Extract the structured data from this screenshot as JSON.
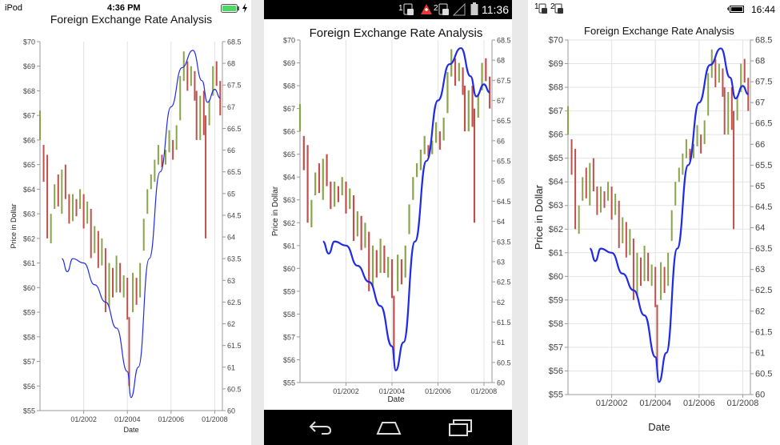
{
  "screens": [
    {
      "id": "ios",
      "status": {
        "carrier": "iPod",
        "time": "4:36 PM"
      },
      "title": "Foreign Exchange Rate Analysis",
      "ylabel": "Price in Dollar",
      "xlabel": "Date"
    },
    {
      "id": "android",
      "status": {
        "notif_counts": [
          "1",
          "2"
        ],
        "time": "11:36"
      },
      "title": "Foreign Exchange Rate Analysis",
      "ylabel": "Price in Dollar",
      "xlabel": "Date"
    },
    {
      "id": "windows",
      "status": {
        "notif_counts": [
          "1",
          "2"
        ],
        "time": "16:44"
      },
      "title": "Foreign Exchange Rate Analysis",
      "ylabel": "Price in Dollar",
      "xlabel": "Date"
    }
  ],
  "colors": {
    "bull": "#8aa549",
    "bear": "#c0504d",
    "line": "#1f2be6",
    "grid": "#e6e6e6",
    "battery": "#4cd964"
  },
  "icons": [
    "battery-icon",
    "charging-bolt-icon",
    "notification-icon",
    "warning-icon",
    "signal-icon",
    "back-icon",
    "home-icon",
    "recents-icon"
  ],
  "chart_data": {
    "type": "candlestick",
    "title": "Foreign Exchange Rate Analysis",
    "xlabel": "Date",
    "ylabel": "Price in Dollar",
    "x_ticks": [
      "01/2002",
      "01/2004",
      "01/2006",
      "01/2008"
    ],
    "y_ticks": [
      "$55",
      "$56",
      "$57",
      "$58",
      "$59",
      "$60",
      "$61",
      "$62",
      "$63",
      "$64",
      "$65",
      "$66",
      "$67",
      "$68",
      "$69",
      "$70"
    ],
    "y2_ticks": [
      "60",
      "60.5",
      "61",
      "61.5",
      "62",
      "62.5",
      "63",
      "63.5",
      "64",
      "64.5",
      "65",
      "65.5",
      "66",
      "66.5",
      "67",
      "67.5",
      "68",
      "68.5"
    ],
    "ylim": [
      55,
      70
    ],
    "y2lim": [
      60,
      68.5
    ],
    "candles": [
      {
        "date": "2000-01",
        "open": 66.0,
        "close": 67.2
      },
      {
        "date": "2000-03",
        "open": 65.8,
        "close": 64.3
      },
      {
        "date": "2000-05",
        "open": 65.4,
        "close": 62.0
      },
      {
        "date": "2000-07",
        "open": 61.8,
        "close": 63.0
      },
      {
        "date": "2000-09",
        "open": 63.2,
        "close": 64.2
      },
      {
        "date": "2000-11",
        "open": 64.6,
        "close": 63.3
      },
      {
        "date": "2001-01",
        "open": 63.0,
        "close": 64.8
      },
      {
        "date": "2001-03",
        "open": 65.0,
        "close": 63.6
      },
      {
        "date": "2001-05",
        "open": 63.8,
        "close": 62.6
      },
      {
        "date": "2001-07",
        "open": 62.7,
        "close": 63.8
      },
      {
        "date": "2001-09",
        "open": 63.6,
        "close": 62.9
      },
      {
        "date": "2001-11",
        "open": 63.2,
        "close": 64.0
      },
      {
        "date": "2002-01",
        "open": 63.8,
        "close": 62.4
      },
      {
        "date": "2002-03",
        "open": 62.6,
        "close": 63.5
      },
      {
        "date": "2002-05",
        "open": 63.2,
        "close": 61.2
      },
      {
        "date": "2002-07",
        "open": 61.4,
        "close": 62.5
      },
      {
        "date": "2002-09",
        "open": 62.3,
        "close": 60.8
      },
      {
        "date": "2002-11",
        "open": 60.9,
        "close": 62.0
      },
      {
        "date": "2003-01",
        "open": 61.6,
        "close": 59.0
      },
      {
        "date": "2003-03",
        "open": 59.2,
        "close": 61.0
      },
      {
        "date": "2003-05",
        "open": 60.8,
        "close": 59.6
      },
      {
        "date": "2003-07",
        "open": 59.8,
        "close": 61.3
      },
      {
        "date": "2003-09",
        "open": 61.0,
        "close": 59.8
      },
      {
        "date": "2003-11",
        "open": 59.6,
        "close": 60.5
      },
      {
        "date": "2004-01",
        "open": 60.4,
        "close": 58.7
      },
      {
        "date": "2004-02",
        "open": 58.8,
        "close": 56.0
      },
      {
        "date": "2004-04",
        "open": 59.0,
        "close": 60.6
      },
      {
        "date": "2004-06",
        "open": 60.4,
        "close": 59.3
      },
      {
        "date": "2004-08",
        "open": 59.6,
        "close": 61.0
      },
      {
        "date": "2004-10",
        "open": 61.5,
        "close": 62.8
      },
      {
        "date": "2004-12",
        "open": 63.0,
        "close": 64.0
      },
      {
        "date": "2005-02",
        "open": 64.0,
        "close": 64.6
      },
      {
        "date": "2005-04",
        "open": 64.3,
        "close": 65.2
      },
      {
        "date": "2005-06",
        "open": 65.0,
        "close": 65.8
      },
      {
        "date": "2005-08",
        "open": 65.4,
        "close": 64.9
      },
      {
        "date": "2005-10",
        "open": 65.0,
        "close": 65.6
      },
      {
        "date": "2005-12",
        "open": 65.5,
        "close": 66.4
      },
      {
        "date": "2006-02",
        "open": 66.0,
        "close": 65.2
      },
      {
        "date": "2006-04",
        "open": 65.6,
        "close": 66.6
      },
      {
        "date": "2006-06",
        "open": 66.8,
        "close": 68.6
      },
      {
        "date": "2006-08",
        "open": 68.4,
        "close": 69.6
      },
      {
        "date": "2006-10",
        "open": 69.2,
        "close": 68.0
      },
      {
        "date": "2006-12",
        "open": 68.2,
        "close": 69.0
      },
      {
        "date": "2007-02",
        "open": 68.8,
        "close": 67.6
      },
      {
        "date": "2007-03",
        "open": 68.0,
        "close": 66.0
      },
      {
        "date": "2007-05",
        "open": 66.0,
        "close": 67.8
      },
      {
        "date": "2007-07",
        "open": 68.0,
        "close": 66.2
      },
      {
        "date": "2007-08",
        "open": 67.0,
        "close": 62.0
      },
      {
        "date": "2007-10",
        "open": 66.6,
        "close": 67.6
      },
      {
        "date": "2007-12",
        "open": 67.8,
        "close": 69.0
      },
      {
        "date": "2008-02",
        "open": 69.2,
        "close": 68.2
      },
      {
        "date": "2008-04",
        "open": 68.4,
        "close": 67.0
      }
    ],
    "line_series": {
      "axis": "y2",
      "points": [
        {
          "date": "2001-01",
          "value": 63.5
        },
        {
          "date": "2001-04",
          "value": 63.2
        },
        {
          "date": "2001-07",
          "value": 63.5
        },
        {
          "date": "2002-01",
          "value": 63.4
        },
        {
          "date": "2002-07",
          "value": 62.9
        },
        {
          "date": "2003-01",
          "value": 62.5
        },
        {
          "date": "2003-07",
          "value": 61.9
        },
        {
          "date": "2004-01",
          "value": 60.9
        },
        {
          "date": "2004-03",
          "value": 60.3
        },
        {
          "date": "2004-07",
          "value": 61.0
        },
        {
          "date": "2005-01",
          "value": 63.5
        },
        {
          "date": "2005-07",
          "value": 65.5
        },
        {
          "date": "2006-01",
          "value": 67.0
        },
        {
          "date": "2006-07",
          "value": 67.9
        },
        {
          "date": "2007-01",
          "value": 68.3
        },
        {
          "date": "2007-06",
          "value": 67.6
        },
        {
          "date": "2007-09",
          "value": 67.1
        },
        {
          "date": "2008-01",
          "value": 67.4
        },
        {
          "date": "2008-04",
          "value": 67.2
        }
      ]
    }
  }
}
